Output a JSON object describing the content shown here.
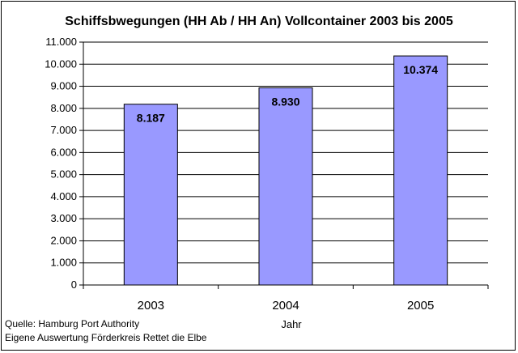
{
  "chart_data": {
    "type": "bar",
    "title": "Schiffsbwegungen (HH Ab / HH An) Vollcontainer  2003 bis 2005",
    "xlabel": "Jahr",
    "ylabel": "",
    "categories": [
      "2003",
      "2004",
      "2005"
    ],
    "values": [
      8187,
      8930,
      10374
    ],
    "value_labels": [
      "8.187",
      "8.930",
      "10.374"
    ],
    "ylim": [
      0,
      11000
    ],
    "y_ticks": [
      0,
      1000,
      2000,
      3000,
      4000,
      5000,
      6000,
      7000,
      8000,
      9000,
      10000,
      11000
    ],
    "y_tick_labels": [
      "0",
      "1.000",
      "2.000",
      "3.000",
      "4.000",
      "5.000",
      "6.000",
      "7.000",
      "8.000",
      "9.000",
      "10.000",
      "11.000"
    ],
    "grid": true,
    "legend": "none",
    "bar_color": "#9999ff"
  },
  "footer": {
    "source_line_1": "Quelle: Hamburg Port Authority",
    "source_line_2": "Eigene Auswertung Förderkreis Rettet die Elbe"
  }
}
